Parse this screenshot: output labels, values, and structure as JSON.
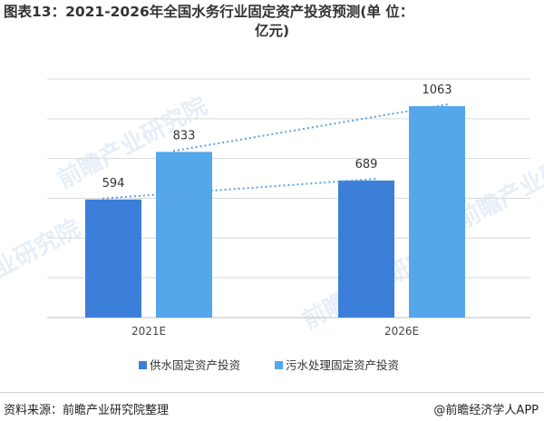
{
  "title_line1": "图表13：2021-2026年全国水务行业固定资产投资预测(单 位：",
  "title_line2": "亿元)",
  "source": "资料来源：前瞻产业研究院整理",
  "brand": "@前瞻经济学人APP",
  "watermark": "前瞻产业研究院",
  "colors": {
    "series1": "#3c7fd9",
    "series2": "#55a7ec",
    "trend": "#5aa2e4",
    "grid": "#d9d9d9"
  },
  "chart_data": {
    "type": "bar",
    "categories": [
      "2021E",
      "2026E"
    ],
    "series": [
      {
        "name": "供水固定资产投资",
        "values": [
          594,
          689
        ]
      },
      {
        "name": "污水处理固定资产投资",
        "values": [
          833,
          1063
        ]
      }
    ],
    "ylim": [
      0,
      1200
    ],
    "grid": true,
    "legend": "bottom",
    "annotations": "dotted trend lines connecting each series across years"
  }
}
